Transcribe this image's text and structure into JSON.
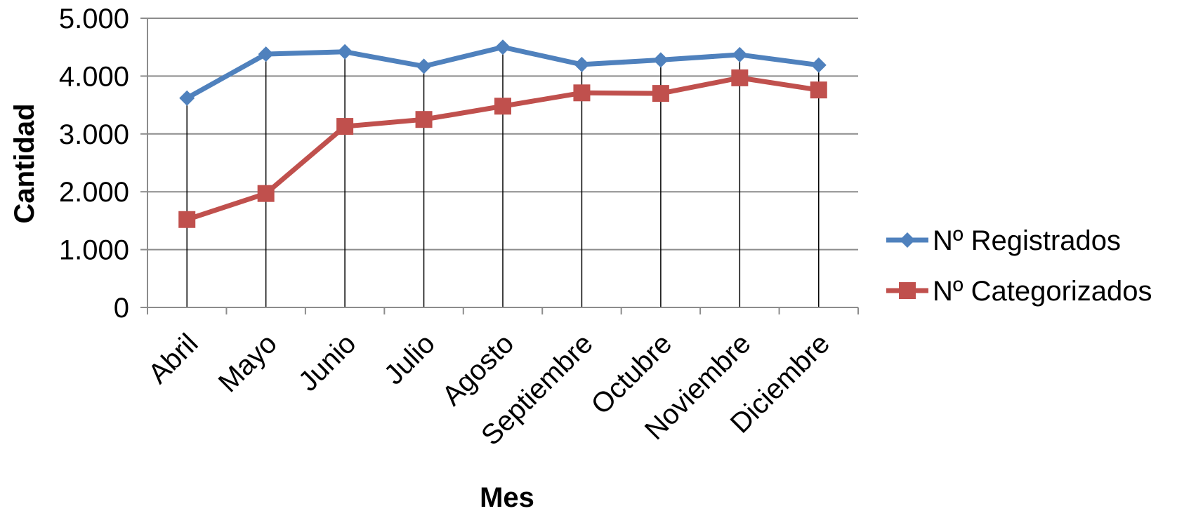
{
  "chart_data": {
    "type": "line",
    "title": "",
    "xlabel": "Mes",
    "ylabel": "Cantidad",
    "categories": [
      "Abril",
      "Mayo",
      "Junio",
      "Julio",
      "Agosto",
      "Septiembre",
      "Octubre",
      "Noviembre",
      "Diciembre"
    ],
    "ylim": [
      0,
      5000
    ],
    "yticks": [
      "0",
      "1.000",
      "2.000",
      "3.000",
      "4.000",
      "5.000"
    ],
    "grid": "horizontal",
    "drop_lines": true,
    "legend_position": "right",
    "series": [
      {
        "name": "Nº Registrados",
        "color": "#4F81BD",
        "marker": "diamond",
        "values": [
          3620,
          4380,
          4420,
          4170,
          4500,
          4200,
          4280,
          4370,
          4190
        ]
      },
      {
        "name": "Nº Categorizados",
        "color": "#C0504D",
        "marker": "square",
        "values": [
          1520,
          1970,
          3130,
          3250,
          3480,
          3710,
          3700,
          3970,
          3760
        ]
      }
    ]
  }
}
